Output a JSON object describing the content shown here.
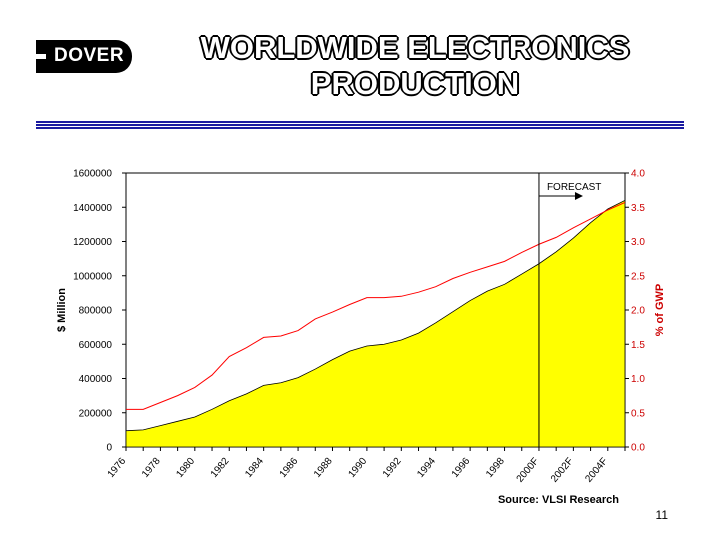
{
  "header": {
    "logo_text": "DOVER",
    "title_line1": "WORLDWIDE ELECTRONICS",
    "title_line2": "PRODUCTION"
  },
  "footer": {
    "page_number": "11"
  },
  "colors": {
    "area_fill": "#ffff00",
    "gwp_line": "#ff0000",
    "rule": "#1a1aa0"
  },
  "chart_data": {
    "type": "area",
    "xlabel": "",
    "ylabel": "$ Million",
    "y2label": "% of GWP",
    "source": "Source: VLSI Research",
    "annotation": "FORECAST",
    "forecast_from": "2000F",
    "ylim": [
      0,
      1600000
    ],
    "y2lim": [
      0,
      4.0
    ],
    "yticks": [
      "0",
      "200000",
      "400000",
      "600000",
      "800000",
      "1000000",
      "1200000",
      "1400000",
      "1600000"
    ],
    "y2ticks": [
      "0.0",
      "0.5",
      "1.0",
      "1.5",
      "2.0",
      "2.5",
      "3.0",
      "3.5",
      "4.0"
    ],
    "x_tick_labels": [
      "1976",
      "1978",
      "1980",
      "1982",
      "1984",
      "1986",
      "1988",
      "1990",
      "1992",
      "1994",
      "1996",
      "1998",
      "2000F",
      "2002F",
      "2004F"
    ],
    "x": [
      "1976",
      "1977",
      "1978",
      "1979",
      "1980",
      "1981",
      "1982",
      "1983",
      "1984",
      "1985",
      "1986",
      "1987",
      "1988",
      "1989",
      "1990",
      "1991",
      "1992",
      "1993",
      "1994",
      "1995",
      "1996",
      "1997",
      "1998",
      "1999",
      "2000F",
      "2001F",
      "2002F",
      "2003F",
      "2004F",
      "2005F"
    ],
    "series": [
      {
        "kind": "area",
        "axis": "left",
        "values": [
          95000,
          100000,
          125000,
          150000,
          175000,
          220000,
          270000,
          310000,
          360000,
          375000,
          405000,
          455000,
          510000,
          560000,
          590000,
          600000,
          625000,
          665000,
          725000,
          790000,
          855000,
          910000,
          950000,
          1010000,
          1070000,
          1140000,
          1220000,
          1310000,
          1390000,
          1440000
        ]
      },
      {
        "kind": "line",
        "axis": "right",
        "values": [
          0.55,
          0.55,
          0.65,
          0.75,
          0.87,
          1.05,
          1.32,
          1.45,
          1.6,
          1.62,
          1.7,
          1.87,
          1.97,
          2.08,
          2.18,
          2.18,
          2.2,
          2.26,
          2.34,
          2.46,
          2.55,
          2.63,
          2.71,
          2.84,
          2.96,
          3.06,
          3.2,
          3.33,
          3.46,
          3.57
        ]
      }
    ]
  }
}
